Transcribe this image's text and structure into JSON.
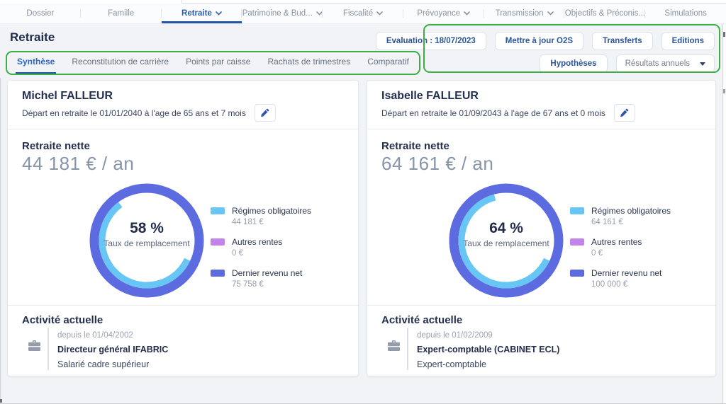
{
  "nav": {
    "tabs": [
      {
        "label": "Dossier",
        "chevron": false,
        "active": false
      },
      {
        "label": "Famille",
        "chevron": false,
        "active": false
      },
      {
        "label": "Retraite",
        "chevron": true,
        "active": true
      },
      {
        "label": "Patrimoine & Bud...",
        "chevron": true,
        "active": false
      },
      {
        "label": "Fiscalité",
        "chevron": true,
        "active": false
      },
      {
        "label": "Prévoyance",
        "chevron": true,
        "active": false
      },
      {
        "label": "Transmission",
        "chevron": true,
        "active": false
      },
      {
        "label": "Objectifs & Préconis...",
        "chevron": false,
        "active": false
      },
      {
        "label": "Simulations",
        "chevron": false,
        "active": false
      }
    ]
  },
  "page": {
    "title": "Retraite"
  },
  "toolbar": {
    "evaluation_label": "Evaluation : 18/07/2023",
    "update_label": "Mettre à jour O2S",
    "transfers_label": "Transferts",
    "editions_label": "Editions",
    "hypotheses_label": "Hypothèses",
    "dropdown_value": "Résultats annuels"
  },
  "subtabs": [
    {
      "label": "Synthèse",
      "active": true
    },
    {
      "label": "Reconstitution de carrière",
      "active": false
    },
    {
      "label": "Points par caisse",
      "active": false
    },
    {
      "label": "Rachats de trimestres",
      "active": false
    },
    {
      "label": "Comparatif",
      "active": false
    }
  ],
  "colors": {
    "annotation_green": "#3cae43",
    "active_tab_blue": "#2456a4",
    "button_text_blue": "#2c5596",
    "donut_ring_blue": "#5d6be0",
    "donut_arc_lightblue": "#67c6f3",
    "legend_purple": "#c283ea"
  },
  "cards": [
    {
      "name": "Michel FALLEUR",
      "depart": "Départ en retraite le 01/01/2040 à l'age de 65 ans et 7 mois",
      "pension_title": "Retraite nette",
      "pension_amount": "44 181 € / an",
      "donut": {
        "pct": 58,
        "center": "58 %",
        "sublabel": "Taux de remplacement",
        "ring_color": "#5d6be0",
        "arc_color": "#67c6f3"
      },
      "legend": [
        {
          "label": "Régimes obligatoires",
          "value": "44 181 €",
          "color": "#67c6f3"
        },
        {
          "label": "Autres rentes",
          "value": "0 €",
          "color": "#c283ea"
        },
        {
          "label": "Dernier revenu net",
          "value": "75 758 €",
          "color": "#5d6be0"
        }
      ],
      "activity": {
        "title": "Activité actuelle",
        "since": "depuis le 01/04/2002",
        "role": "Directeur général IFABRIC",
        "status": "Salarié cadre supérieur"
      }
    },
    {
      "name": "Isabelle FALLEUR",
      "depart": "Départ en retraite le 01/09/2043 à l'age de 67 ans et 0 mois",
      "pension_title": "Retraite nette",
      "pension_amount": "64 161 € / an",
      "donut": {
        "pct": 64,
        "center": "64 %",
        "sublabel": "Taux de remplacement",
        "ring_color": "#5d6be0",
        "arc_color": "#67c6f3"
      },
      "legend": [
        {
          "label": "Régimes obligatoires",
          "value": "64 161 €",
          "color": "#67c6f3"
        },
        {
          "label": "Autres rentes",
          "value": "0 €",
          "color": "#c283ea"
        },
        {
          "label": "Dernier revenu net",
          "value": "100 000 €",
          "color": "#5d6be0"
        }
      ],
      "activity": {
        "title": "Activité actuelle",
        "since": "depuis le 01/02/2009",
        "role": "Expert-comptable (CABINET ECL)",
        "status": "Expert-comptable"
      }
    }
  ],
  "chart_data": [
    {
      "type": "pie",
      "subtype": "donut-gauge",
      "title": "Retraite nette — Michel FALLEUR",
      "center_value_pct": 58,
      "center_label": "58 %",
      "center_sublabel": "Taux de remplacement",
      "annual_net_pension_eur": 44181,
      "segments": [
        {
          "label": "Régimes obligatoires",
          "value_eur": 44181,
          "color": "#67c6f3"
        },
        {
          "label": "Autres rentes",
          "value_eur": 0,
          "color": "#c283ea"
        },
        {
          "label": "Dernier revenu net",
          "value_eur": 75758,
          "color": "#5d6be0"
        }
      ],
      "legend_position": "right"
    },
    {
      "type": "pie",
      "subtype": "donut-gauge",
      "title": "Retraite nette — Isabelle FALLEUR",
      "center_value_pct": 64,
      "center_label": "64 %",
      "center_sublabel": "Taux de remplacement",
      "annual_net_pension_eur": 64161,
      "segments": [
        {
          "label": "Régimes obligatoires",
          "value_eur": 64161,
          "color": "#67c6f3"
        },
        {
          "label": "Autres rentes",
          "value_eur": 0,
          "color": "#c283ea"
        },
        {
          "label": "Dernier revenu net",
          "value_eur": 100000,
          "color": "#5d6be0"
        }
      ],
      "legend_position": "right"
    }
  ]
}
